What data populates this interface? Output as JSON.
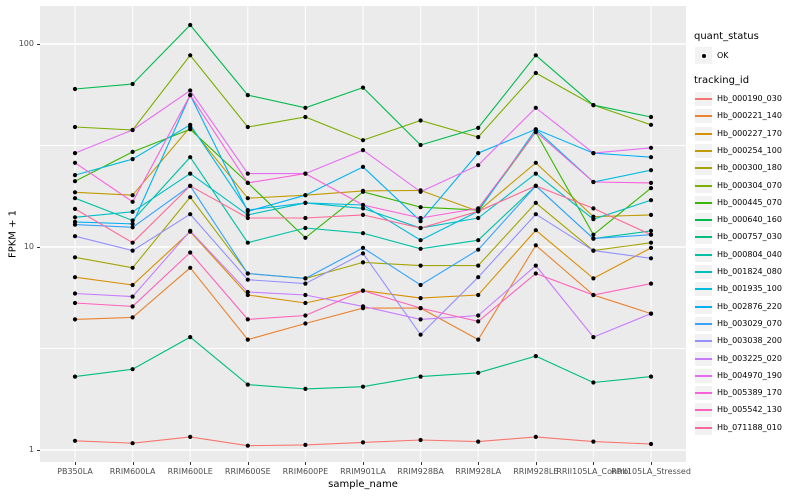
{
  "axes": {
    "y_title": "FPKM + 1",
    "x_title": "sample_name",
    "y_ticks": [
      {
        "label": "100",
        "value": 100
      },
      {
        "label": "10",
        "value": 10
      },
      {
        "label": "1",
        "value": 1
      }
    ]
  },
  "legend": {
    "quant_status_title": "quant_status",
    "quant_status_value": "OK",
    "tracking_title": "tracking_id"
  },
  "colors": {
    "panel_bg": "#EBEBEB",
    "grid": "#FFFFFF",
    "legend_key_bg": "#F2F2F2",
    "point": "#000000",
    "tick_text": "#4D4D4D",
    "tick_mark": "#333333"
  },
  "chart_data": {
    "type": "line",
    "title": "",
    "xlabel": "sample_name",
    "ylabel": "FPKM + 1",
    "y_scale": "log10",
    "ylim": [
      1,
      155
    ],
    "y_major_ticks": [
      1,
      10,
      100
    ],
    "y_minor_gridlines": [
      3.162,
      31.62
    ],
    "grid": true,
    "legend_position": "right",
    "point_shape": "black dot at every sample (quant_status OK)",
    "values_are": "FPKM + 1",
    "categories": [
      "PB350LA",
      "RRIM600LA",
      "RRIM600LE",
      "RRIM600SE",
      "RRIM600PE",
      "RRIM901LA",
      "RRIM928BA",
      "RRIM928LA",
      "RRIM928LE",
      "RRII105LA_Control",
      "RRII105LA_Stressed"
    ],
    "series": [
      {
        "name": "Hb_000190_030",
        "color": "#F8766D",
        "values": [
          1.11,
          1.08,
          1.16,
          1.05,
          1.06,
          1.09,
          1.12,
          1.1,
          1.16,
          1.1,
          1.07
        ]
      },
      {
        "name": "Hb_000221_140",
        "color": "#EA8331",
        "values": [
          4.4,
          4.5,
          7.9,
          3.5,
          4.2,
          5.0,
          5.0,
          3.5,
          10.2,
          5.8,
          4.7
        ]
      },
      {
        "name": "Hb_000227_170",
        "color": "#D89000",
        "values": [
          7.1,
          6.5,
          11.9,
          5.8,
          5.3,
          6.1,
          5.6,
          5.8,
          12.1,
          7.0,
          9.9
        ]
      },
      {
        "name": "Hb_000254_100",
        "color": "#C09B00",
        "values": [
          18.6,
          18.0,
          39.0,
          17.4,
          18.0,
          18.9,
          19.0,
          15.0,
          26.0,
          14.1,
          14.4
        ]
      },
      {
        "name": "Hb_000300_180",
        "color": "#A3A500",
        "values": [
          8.9,
          7.9,
          17.6,
          7.4,
          7.0,
          8.4,
          8.1,
          8.1,
          16.5,
          9.6,
          10.5
        ]
      },
      {
        "name": "Hb_000304_070",
        "color": "#7CAE00",
        "values": [
          39.0,
          37.7,
          88.0,
          39.0,
          43.7,
          33.6,
          42.0,
          34.8,
          72.0,
          50.0,
          40.0
        ]
      },
      {
        "name": "Hb_000445_070",
        "color": "#39B600",
        "values": [
          21.1,
          29.4,
          38.0,
          20.7,
          11.1,
          18.7,
          15.7,
          15.2,
          36.8,
          11.5,
          19.5
        ]
      },
      {
        "name": "Hb_000640_160",
        "color": "#00BB4E",
        "values": [
          60.0,
          63.5,
          124.0,
          56.0,
          48.5,
          61.0,
          31.8,
          38.6,
          88.0,
          50.0,
          43.7
        ]
      },
      {
        "name": "Hb_000757_030",
        "color": "#00BF7D",
        "values": [
          2.3,
          2.5,
          3.6,
          2.1,
          2.0,
          2.05,
          2.3,
          2.4,
          2.9,
          2.15,
          2.3
        ]
      },
      {
        "name": "Hb_000804_040",
        "color": "#00C1A3",
        "values": [
          17.4,
          13.5,
          27.7,
          10.5,
          12.4,
          11.7,
          9.8,
          10.8,
          20.0,
          11.0,
          12.0
        ]
      },
      {
        "name": "Hb_001824_080",
        "color": "#00BFC4",
        "values": [
          14.0,
          14.9,
          23.0,
          14.4,
          16.5,
          15.5,
          12.4,
          13.9,
          23.0,
          13.7,
          17.0
        ]
      },
      {
        "name": "Hb_001935_100",
        "color": "#00BAE0",
        "values": [
          22.6,
          27.1,
          40.0,
          15.2,
          16.5,
          16.1,
          10.8,
          15.0,
          38.0,
          20.9,
          23.9
        ]
      },
      {
        "name": "Hb_002876_220",
        "color": "#00B0F6",
        "values": [
          13.3,
          13.0,
          56.0,
          15.0,
          18.0,
          24.8,
          13.4,
          29.0,
          38.0,
          29.0,
          27.7
        ]
      },
      {
        "name": "Hb_003029_070",
        "color": "#35A2FF",
        "values": [
          12.9,
          12.5,
          20.0,
          7.4,
          7.0,
          9.9,
          6.5,
          9.7,
          20.0,
          11.0,
          11.5
        ]
      },
      {
        "name": "Hb_003038_200",
        "color": "#9590FF",
        "values": [
          11.3,
          9.6,
          14.5,
          6.9,
          6.6,
          9.3,
          3.7,
          7.1,
          14.5,
          9.6,
          8.8
        ]
      },
      {
        "name": "Hb_003225_020",
        "color": "#C77CFF",
        "values": [
          5.9,
          5.7,
          12.0,
          6.0,
          5.8,
          5.1,
          4.4,
          4.6,
          8.1,
          3.6,
          4.7
        ]
      },
      {
        "name": "Hb_004970_190",
        "color": "#E76BF3",
        "values": [
          29.0,
          37.7,
          59.0,
          23.0,
          23.0,
          30.0,
          18.7,
          25.3,
          48.5,
          29.0,
          30.8
        ]
      },
      {
        "name": "Hb_005389_170",
        "color": "#FA62DB",
        "values": [
          26.0,
          16.7,
          56.0,
          20.7,
          23.0,
          16.1,
          13.9,
          15.5,
          37.0,
          20.9,
          20.7
        ]
      },
      {
        "name": "Hb_005542_130",
        "color": "#FF62BC",
        "values": [
          5.3,
          5.1,
          9.4,
          4.4,
          4.6,
          6.1,
          5.0,
          4.3,
          7.4,
          5.8,
          6.6
        ]
      },
      {
        "name": "Hb_071188_010",
        "color": "#FF6A98",
        "values": [
          15.4,
          10.5,
          20.0,
          13.9,
          13.9,
          14.4,
          12.4,
          15.0,
          20.0,
          15.5,
          11.5
        ]
      }
    ]
  }
}
